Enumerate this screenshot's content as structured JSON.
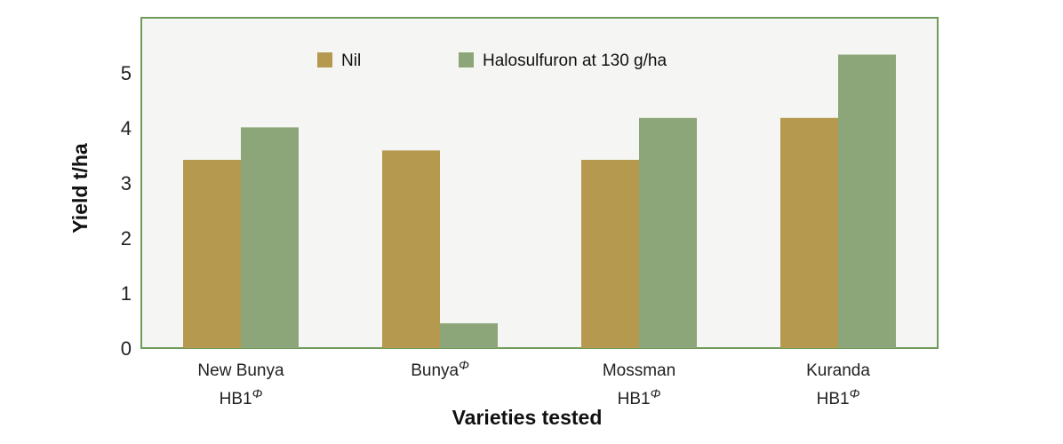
{
  "chart_data": {
    "type": "bar",
    "xlabel": "Varieties tested",
    "ylabel": "Yield t/ha",
    "ylim": [
      0,
      6
    ],
    "yticks": [
      0,
      1,
      2,
      3,
      4,
      5
    ],
    "categories": [
      {
        "lines": [
          "New Bunya",
          "HB1"
        ],
        "marker": "Φ"
      },
      {
        "lines": [
          "Bunya"
        ],
        "marker": "Φ"
      },
      {
        "lines": [
          "Mossman",
          "HB1"
        ],
        "marker": "Φ"
      },
      {
        "lines": [
          "Kuranda",
          "HB1"
        ],
        "marker": "Φ"
      }
    ],
    "series": [
      {
        "name": "Nil",
        "color": "#b5994e",
        "values": [
          3.42,
          3.59,
          3.42,
          4.18
        ]
      },
      {
        "name": "Halosulfuron at 130 g/ha",
        "color": "#8ca67a",
        "values": [
          4.01,
          0.45,
          4.18,
          5.33
        ]
      }
    ],
    "legend_position": "top",
    "grid": false,
    "plot_background": "#f5f5f3",
    "plot_border_color": "#6f9a5a"
  }
}
